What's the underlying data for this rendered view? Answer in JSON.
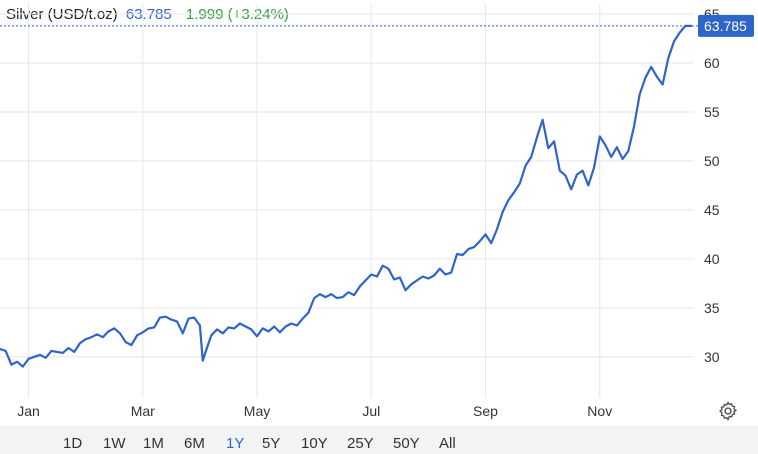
{
  "header": {
    "title": "Silver (USD/t.oz)",
    "price": "63.785",
    "change": "1.999 (+3.24%)"
  },
  "price_tag": "63.785",
  "ranges": [
    "1D",
    "1W",
    "1M",
    "6M",
    "1Y",
    "5Y",
    "10Y",
    "25Y",
    "50Y",
    "All"
  ],
  "active_range": "1Y",
  "colors": {
    "line": "#2f64c8",
    "price_tag_bg": "#2f64c8",
    "change_positive": "#2e9e3a",
    "grid": "#e6e6e6"
  },
  "icons": {
    "settings": "gear-icon"
  },
  "chart_data": {
    "type": "line",
    "title": "Silver (USD/t.oz)",
    "xlabel": "",
    "ylabel": "",
    "ylim": [
      26,
      65
    ],
    "x_range": [
      0,
      12.15
    ],
    "x_tick_labels": [
      "Jan",
      "Mar",
      "May",
      "Jul",
      "Sep",
      "Nov"
    ],
    "x_tick_positions": [
      0.5,
      2.5,
      4.5,
      6.5,
      8.5,
      10.5
    ],
    "y_ticks": [
      30,
      35,
      40,
      45,
      50,
      55,
      60,
      65
    ],
    "grid": true,
    "legend": "none",
    "last_value": 63.785,
    "series": [
      {
        "name": "Silver",
        "x": [
          0,
          0.1,
          0.2,
          0.3,
          0.4,
          0.5,
          0.6,
          0.7,
          0.8,
          0.9,
          1.0,
          1.1,
          1.2,
          1.3,
          1.4,
          1.5,
          1.6,
          1.7,
          1.8,
          1.9,
          2.0,
          2.1,
          2.2,
          2.3,
          2.4,
          2.5,
          2.6,
          2.7,
          2.8,
          2.9,
          3.0,
          3.1,
          3.2,
          3.3,
          3.4,
          3.5,
          3.55,
          3.6,
          3.7,
          3.8,
          3.9,
          4.0,
          4.1,
          4.2,
          4.3,
          4.4,
          4.5,
          4.6,
          4.7,
          4.8,
          4.9,
          5.0,
          5.1,
          5.2,
          5.3,
          5.4,
          5.5,
          5.6,
          5.7,
          5.8,
          5.9,
          6.0,
          6.1,
          6.2,
          6.3,
          6.4,
          6.5,
          6.6,
          6.7,
          6.8,
          6.9,
          7.0,
          7.1,
          7.2,
          7.3,
          7.4,
          7.5,
          7.6,
          7.7,
          7.8,
          7.9,
          8.0,
          8.1,
          8.2,
          8.3,
          8.4,
          8.5,
          8.6,
          8.7,
          8.8,
          8.9,
          9.0,
          9.1,
          9.2,
          9.3,
          9.4,
          9.5,
          9.6,
          9.7,
          9.8,
          9.9,
          10.0,
          10.1,
          10.2,
          10.3,
          10.4,
          10.5,
          10.6,
          10.7,
          10.8,
          10.9,
          11.0,
          11.1,
          11.2,
          11.3,
          11.4,
          11.5,
          11.6,
          11.7,
          11.8,
          11.9,
          12.0,
          12.1
        ],
        "values": [
          30.8,
          30.6,
          29.2,
          29.5,
          29.0,
          29.8,
          30.0,
          30.2,
          29.9,
          30.6,
          30.5,
          30.4,
          30.9,
          30.5,
          31.4,
          31.8,
          32.0,
          32.3,
          32.0,
          32.6,
          32.9,
          32.4,
          31.5,
          31.2,
          32.2,
          32.5,
          32.9,
          33.0,
          34.0,
          34.1,
          33.8,
          33.6,
          32.4,
          33.9,
          34.0,
          33.2,
          29.6,
          30.5,
          32.2,
          32.8,
          32.4,
          33.0,
          32.9,
          33.4,
          33.1,
          32.8,
          32.1,
          32.9,
          32.6,
          33.1,
          32.5,
          33.1,
          33.4,
          33.2,
          33.9,
          34.5,
          36.0,
          36.4,
          36.1,
          36.4,
          36.0,
          36.1,
          36.6,
          36.3,
          37.2,
          37.8,
          38.4,
          38.2,
          39.3,
          39.0,
          37.9,
          38.1,
          36.8,
          37.4,
          37.8,
          38.2,
          38.0,
          38.3,
          39.0,
          38.4,
          38.6,
          40.5,
          40.4,
          41.0,
          41.2,
          41.8,
          42.5,
          41.6,
          43.0,
          44.8,
          46.0,
          46.8,
          47.7,
          49.5,
          50.4,
          52.4,
          54.2,
          51.3,
          52.0,
          49.0,
          48.5,
          47.1,
          48.6,
          49.0,
          47.5,
          49.3,
          52.5,
          51.6,
          50.4,
          51.4,
          50.2,
          51.0,
          53.5,
          56.8,
          58.5,
          59.6,
          58.6,
          57.8,
          60.5,
          62.2,
          63.1,
          63.785,
          63.785
        ]
      }
    ]
  }
}
